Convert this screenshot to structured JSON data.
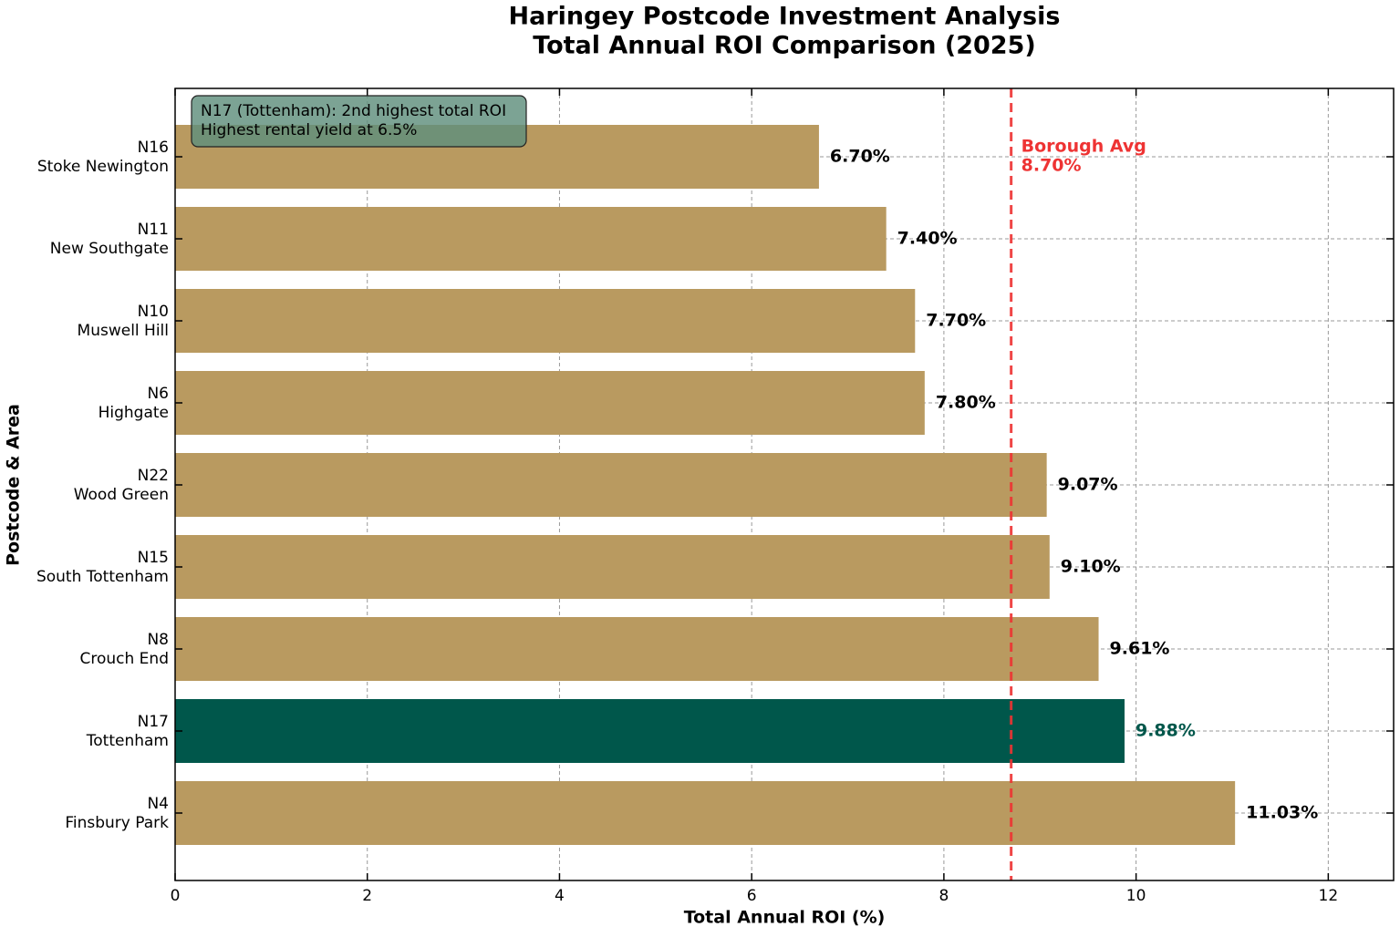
{
  "chart_data": {
    "type": "barh",
    "title": "Haringey Postcode Investment Analysis",
    "subtitle": "Total Annual ROI Comparison (2025)",
    "x_label": "Total Annual ROI (%)",
    "y_label": "Postcode & Area",
    "categories": [
      "N16\nStoke Newington",
      "N11\nNew Southgate",
      "N10\nMuswell Hill",
      "N6\nHighgate",
      "N22\nWood Green",
      "N15\nSouth Tottenham",
      "N8\nCrouch End",
      "N17\nTottenham",
      "N4\nFinsbury Park"
    ],
    "values": [
      6.7,
      7.4,
      7.7,
      7.8,
      9.07,
      9.1,
      9.61,
      9.88,
      11.03
    ],
    "value_labels": [
      "6.70%",
      "7.40%",
      "7.70%",
      "7.80%",
      "9.07%",
      "9.10%",
      "9.61%",
      "9.88%",
      "11.03%"
    ],
    "colors": [
      "#b99a60",
      "#b99a60",
      "#b99a60",
      "#b99a60",
      "#b99a60",
      "#b99a60",
      "#b99a60",
      "#00574b",
      "#b99a60"
    ],
    "xlim": [
      0,
      12.68
    ],
    "xticks": [
      0,
      2,
      4,
      6,
      8,
      10,
      12
    ],
    "grid": true,
    "reference_line": {
      "value": 8.7,
      "label": "Borough Avg",
      "value_label": "8.70%",
      "color": "#ee3333"
    },
    "annotation": [
      "N17 (Tottenham): 2nd highest total ROI",
      "Highest rental yield at 6.5%"
    ]
  }
}
